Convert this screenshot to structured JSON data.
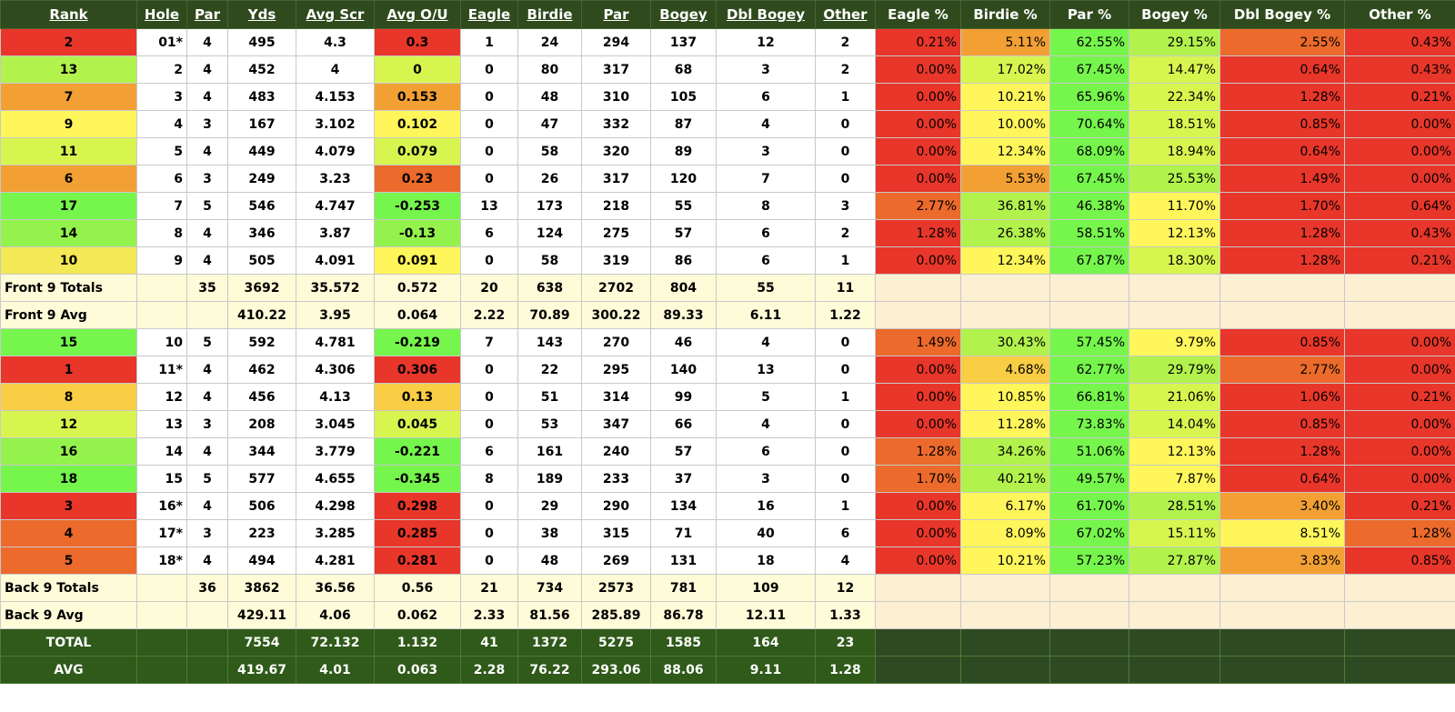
{
  "headers": [
    "Rank",
    "Hole",
    "Par",
    "Yds",
    "Avg Scr",
    "Avg O/U",
    "Eagle",
    "Birdie",
    "Par",
    "Bogey",
    "Dbl Bogey",
    "Other",
    "Eagle %",
    "Birdie %",
    "Par %",
    "Bogey %",
    "Dbl Bogey %",
    "Other %"
  ],
  "colors": {
    "r": "#e8362a",
    "o": "#ec6a2c",
    "ao": "#f2a034",
    "y": "#fef65a",
    "g": "#76f54c",
    "lg": "#b2f24c",
    "yg": "#d8f54f",
    "mg": "#94f24c",
    "ly": "#f3e855",
    "yo": "#f9cd44"
  },
  "sections": [
    {
      "type": "hole",
      "rank": "2",
      "rank_c": "r",
      "hole": "01*",
      "par": "4",
      "yds": "495",
      "avg_scr": "4.3",
      "avg_ou": "0.3",
      "ou_c": "r",
      "eagle": "1",
      "birdie": "24",
      "par_n": "294",
      "bogey": "137",
      "dbl": "12",
      "other": "2",
      "pcts": [
        [
          "0.21%",
          "r"
        ],
        [
          "5.11%",
          "ao"
        ],
        [
          "62.55%",
          "g"
        ],
        [
          "29.15%",
          "lg"
        ],
        [
          "2.55%",
          "o"
        ],
        [
          "0.43%",
          "r"
        ]
      ]
    },
    {
      "type": "hole",
      "rank": "13",
      "rank_c": "lg",
      "hole": "2",
      "par": "4",
      "yds": "452",
      "avg_scr": "4",
      "avg_ou": "0",
      "ou_c": "yg",
      "eagle": "0",
      "birdie": "80",
      "par_n": "317",
      "bogey": "68",
      "dbl": "3",
      "other": "2",
      "pcts": [
        [
          "0.00%",
          "r"
        ],
        [
          "17.02%",
          "yg"
        ],
        [
          "67.45%",
          "g"
        ],
        [
          "14.47%",
          "yg"
        ],
        [
          "0.64%",
          "r"
        ],
        [
          "0.43%",
          "r"
        ]
      ]
    },
    {
      "type": "hole",
      "rank": "7",
      "rank_c": "ao",
      "hole": "3",
      "par": "4",
      "yds": "483",
      "avg_scr": "4.153",
      "avg_ou": "0.153",
      "ou_c": "ao",
      "eagle": "0",
      "birdie": "48",
      "par_n": "310",
      "bogey": "105",
      "dbl": "6",
      "other": "1",
      "pcts": [
        [
          "0.00%",
          "r"
        ],
        [
          "10.21%",
          "y"
        ],
        [
          "65.96%",
          "g"
        ],
        [
          "22.34%",
          "yg"
        ],
        [
          "1.28%",
          "r"
        ],
        [
          "0.21%",
          "r"
        ]
      ]
    },
    {
      "type": "hole",
      "rank": "9",
      "rank_c": "y",
      "hole": "4",
      "par": "3",
      "yds": "167",
      "avg_scr": "3.102",
      "avg_ou": "0.102",
      "ou_c": "y",
      "eagle": "0",
      "birdie": "47",
      "par_n": "332",
      "bogey": "87",
      "dbl": "4",
      "other": "0",
      "pcts": [
        [
          "0.00%",
          "r"
        ],
        [
          "10.00%",
          "y"
        ],
        [
          "70.64%",
          "g"
        ],
        [
          "18.51%",
          "yg"
        ],
        [
          "0.85%",
          "r"
        ],
        [
          "0.00%",
          "r"
        ]
      ]
    },
    {
      "type": "hole",
      "rank": "11",
      "rank_c": "yg",
      "hole": "5",
      "par": "4",
      "yds": "449",
      "avg_scr": "4.079",
      "avg_ou": "0.079",
      "ou_c": "yg",
      "eagle": "0",
      "birdie": "58",
      "par_n": "320",
      "bogey": "89",
      "dbl": "3",
      "other": "0",
      "pcts": [
        [
          "0.00%",
          "r"
        ],
        [
          "12.34%",
          "y"
        ],
        [
          "68.09%",
          "g"
        ],
        [
          "18.94%",
          "yg"
        ],
        [
          "0.64%",
          "r"
        ],
        [
          "0.00%",
          "r"
        ]
      ]
    },
    {
      "type": "hole",
      "rank": "6",
      "rank_c": "ao",
      "hole": "6",
      "par": "3",
      "yds": "249",
      "avg_scr": "3.23",
      "avg_ou": "0.23",
      "ou_c": "o",
      "eagle": "0",
      "birdie": "26",
      "par_n": "317",
      "bogey": "120",
      "dbl": "7",
      "other": "0",
      "pcts": [
        [
          "0.00%",
          "r"
        ],
        [
          "5.53%",
          "ao"
        ],
        [
          "67.45%",
          "g"
        ],
        [
          "25.53%",
          "lg"
        ],
        [
          "1.49%",
          "r"
        ],
        [
          "0.00%",
          "r"
        ]
      ]
    },
    {
      "type": "hole",
      "rank": "17",
      "rank_c": "g",
      "hole": "7",
      "par": "5",
      "yds": "546",
      "avg_scr": "4.747",
      "avg_ou": "-0.253",
      "ou_c": "g",
      "eagle": "13",
      "birdie": "173",
      "par_n": "218",
      "bogey": "55",
      "dbl": "8",
      "other": "3",
      "pcts": [
        [
          "2.77%",
          "o"
        ],
        [
          "36.81%",
          "lg"
        ],
        [
          "46.38%",
          "g"
        ],
        [
          "11.70%",
          "y"
        ],
        [
          "1.70%",
          "r"
        ],
        [
          "0.64%",
          "r"
        ]
      ]
    },
    {
      "type": "hole",
      "rank": "14",
      "rank_c": "mg",
      "hole": "8",
      "par": "4",
      "yds": "346",
      "avg_scr": "3.87",
      "avg_ou": "-0.13",
      "ou_c": "mg",
      "eagle": "6",
      "birdie": "124",
      "par_n": "275",
      "bogey": "57",
      "dbl": "6",
      "other": "2",
      "pcts": [
        [
          "1.28%",
          "r"
        ],
        [
          "26.38%",
          "lg"
        ],
        [
          "58.51%",
          "g"
        ],
        [
          "12.13%",
          "y"
        ],
        [
          "1.28%",
          "r"
        ],
        [
          "0.43%",
          "r"
        ]
      ]
    },
    {
      "type": "hole",
      "rank": "10",
      "rank_c": "ly",
      "hole": "9",
      "par": "4",
      "yds": "505",
      "avg_scr": "4.091",
      "avg_ou": "0.091",
      "ou_c": "y",
      "eagle": "0",
      "birdie": "58",
      "par_n": "319",
      "bogey": "86",
      "dbl": "6",
      "other": "1",
      "pcts": [
        [
          "0.00%",
          "r"
        ],
        [
          "12.34%",
          "y"
        ],
        [
          "67.87%",
          "g"
        ],
        [
          "18.30%",
          "yg"
        ],
        [
          "1.28%",
          "r"
        ],
        [
          "0.21%",
          "r"
        ]
      ]
    },
    {
      "type": "sum",
      "label": "Front 9 Totals",
      "par": "35",
      "yds": "3692",
      "avg_scr": "35.572",
      "avg_ou": "0.572",
      "eagle": "20",
      "birdie": "638",
      "par_n": "2702",
      "bogey": "804",
      "dbl": "55",
      "other": "11"
    },
    {
      "type": "sum",
      "label": "Front 9 Avg",
      "par": "",
      "yds": "410.22",
      "avg_scr": "3.95",
      "avg_ou": "0.064",
      "eagle": "2.22",
      "birdie": "70.89",
      "par_n": "300.22",
      "bogey": "89.33",
      "dbl": "6.11",
      "other": "1.22"
    },
    {
      "type": "hole",
      "rank": "15",
      "rank_c": "g",
      "hole": "10",
      "par": "5",
      "yds": "592",
      "avg_scr": "4.781",
      "avg_ou": "-0.219",
      "ou_c": "g",
      "eagle": "7",
      "birdie": "143",
      "par_n": "270",
      "bogey": "46",
      "dbl": "4",
      "other": "0",
      "pcts": [
        [
          "1.49%",
          "o"
        ],
        [
          "30.43%",
          "lg"
        ],
        [
          "57.45%",
          "g"
        ],
        [
          "9.79%",
          "y"
        ],
        [
          "0.85%",
          "r"
        ],
        [
          "0.00%",
          "r"
        ]
      ]
    },
    {
      "type": "hole",
      "rank": "1",
      "rank_c": "r",
      "hole": "11*",
      "par": "4",
      "yds": "462",
      "avg_scr": "4.306",
      "avg_ou": "0.306",
      "ou_c": "r",
      "eagle": "0",
      "birdie": "22",
      "par_n": "295",
      "bogey": "140",
      "dbl": "13",
      "other": "0",
      "pcts": [
        [
          "0.00%",
          "r"
        ],
        [
          "4.68%",
          "yo"
        ],
        [
          "62.77%",
          "g"
        ],
        [
          "29.79%",
          "lg"
        ],
        [
          "2.77%",
          "o"
        ],
        [
          "0.00%",
          "r"
        ]
      ]
    },
    {
      "type": "hole",
      "rank": "8",
      "rank_c": "yo",
      "hole": "12",
      "par": "4",
      "yds": "456",
      "avg_scr": "4.13",
      "avg_ou": "0.13",
      "ou_c": "yo",
      "eagle": "0",
      "birdie": "51",
      "par_n": "314",
      "bogey": "99",
      "dbl": "5",
      "other": "1",
      "pcts": [
        [
          "0.00%",
          "r"
        ],
        [
          "10.85%",
          "y"
        ],
        [
          "66.81%",
          "g"
        ],
        [
          "21.06%",
          "yg"
        ],
        [
          "1.06%",
          "r"
        ],
        [
          "0.21%",
          "r"
        ]
      ]
    },
    {
      "type": "hole",
      "rank": "12",
      "rank_c": "yg",
      "hole": "13",
      "par": "3",
      "yds": "208",
      "avg_scr": "3.045",
      "avg_ou": "0.045",
      "ou_c": "yg",
      "eagle": "0",
      "birdie": "53",
      "par_n": "347",
      "bogey": "66",
      "dbl": "4",
      "other": "0",
      "pcts": [
        [
          "0.00%",
          "r"
        ],
        [
          "11.28%",
          "y"
        ],
        [
          "73.83%",
          "g"
        ],
        [
          "14.04%",
          "yg"
        ],
        [
          "0.85%",
          "r"
        ],
        [
          "0.00%",
          "r"
        ]
      ]
    },
    {
      "type": "hole",
      "rank": "16",
      "rank_c": "mg",
      "hole": "14",
      "par": "4",
      "yds": "344",
      "avg_scr": "3.779",
      "avg_ou": "-0.221",
      "ou_c": "g",
      "eagle": "6",
      "birdie": "161",
      "par_n": "240",
      "bogey": "57",
      "dbl": "6",
      "other": "0",
      "pcts": [
        [
          "1.28%",
          "o"
        ],
        [
          "34.26%",
          "lg"
        ],
        [
          "51.06%",
          "g"
        ],
        [
          "12.13%",
          "y"
        ],
        [
          "1.28%",
          "r"
        ],
        [
          "0.00%",
          "r"
        ]
      ]
    },
    {
      "type": "hole",
      "rank": "18",
      "rank_c": "g",
      "hole": "15",
      "par": "5",
      "yds": "577",
      "avg_scr": "4.655",
      "avg_ou": "-0.345",
      "ou_c": "g",
      "eagle": "8",
      "birdie": "189",
      "par_n": "233",
      "bogey": "37",
      "dbl": "3",
      "other": "0",
      "pcts": [
        [
          "1.70%",
          "o"
        ],
        [
          "40.21%",
          "lg"
        ],
        [
          "49.57%",
          "g"
        ],
        [
          "7.87%",
          "y"
        ],
        [
          "0.64%",
          "r"
        ],
        [
          "0.00%",
          "r"
        ]
      ]
    },
    {
      "type": "hole",
      "rank": "3",
      "rank_c": "r",
      "hole": "16*",
      "par": "4",
      "yds": "506",
      "avg_scr": "4.298",
      "avg_ou": "0.298",
      "ou_c": "r",
      "eagle": "0",
      "birdie": "29",
      "par_n": "290",
      "bogey": "134",
      "dbl": "16",
      "other": "1",
      "pcts": [
        [
          "0.00%",
          "r"
        ],
        [
          "6.17%",
          "y"
        ],
        [
          "61.70%",
          "g"
        ],
        [
          "28.51%",
          "lg"
        ],
        [
          "3.40%",
          "ao"
        ],
        [
          "0.21%",
          "r"
        ]
      ]
    },
    {
      "type": "hole",
      "rank": "4",
      "rank_c": "o",
      "hole": "17*",
      "par": "3",
      "yds": "223",
      "avg_scr": "3.285",
      "avg_ou": "0.285",
      "ou_c": "r",
      "eagle": "0",
      "birdie": "38",
      "par_n": "315",
      "bogey": "71",
      "dbl": "40",
      "other": "6",
      "pcts": [
        [
          "0.00%",
          "r"
        ],
        [
          "8.09%",
          "y"
        ],
        [
          "67.02%",
          "g"
        ],
        [
          "15.11%",
          "yg"
        ],
        [
          "8.51%",
          "y"
        ],
        [
          "1.28%",
          "o"
        ]
      ]
    },
    {
      "type": "hole",
      "rank": "5",
      "rank_c": "o",
      "hole": "18*",
      "par": "4",
      "yds": "494",
      "avg_scr": "4.281",
      "avg_ou": "0.281",
      "ou_c": "r",
      "eagle": "0",
      "birdie": "48",
      "par_n": "269",
      "bogey": "131",
      "dbl": "18",
      "other": "4",
      "pcts": [
        [
          "0.00%",
          "r"
        ],
        [
          "10.21%",
          "y"
        ],
        [
          "57.23%",
          "g"
        ],
        [
          "27.87%",
          "lg"
        ],
        [
          "3.83%",
          "ao"
        ],
        [
          "0.85%",
          "r"
        ]
      ]
    },
    {
      "type": "sum",
      "label": "Back 9 Totals",
      "par": "36",
      "yds": "3862",
      "avg_scr": "36.56",
      "avg_ou": "0.56",
      "eagle": "21",
      "birdie": "734",
      "par_n": "2573",
      "bogey": "781",
      "dbl": "109",
      "other": "12"
    },
    {
      "type": "sum",
      "label": "Back 9 Avg",
      "par": "",
      "yds": "429.11",
      "avg_scr": "4.06",
      "avg_ou": "0.062",
      "eagle": "2.33",
      "birdie": "81.56",
      "par_n": "285.89",
      "bogey": "86.78",
      "dbl": "12.11",
      "other": "1.33"
    },
    {
      "type": "grand",
      "label": "TOTAL",
      "par": "",
      "yds": "7554",
      "avg_scr": "72.132",
      "avg_ou": "1.132",
      "eagle": "41",
      "birdie": "1372",
      "par_n": "5275",
      "bogey": "1585",
      "dbl": "164",
      "other": "23"
    },
    {
      "type": "grand",
      "label": "AVG",
      "par": "",
      "yds": "419.67",
      "avg_scr": "4.01",
      "avg_ou": "0.063",
      "eagle": "2.28",
      "birdie": "76.22",
      "par_n": "293.06",
      "bogey": "88.06",
      "dbl": "9.11",
      "other": "1.28"
    }
  ]
}
